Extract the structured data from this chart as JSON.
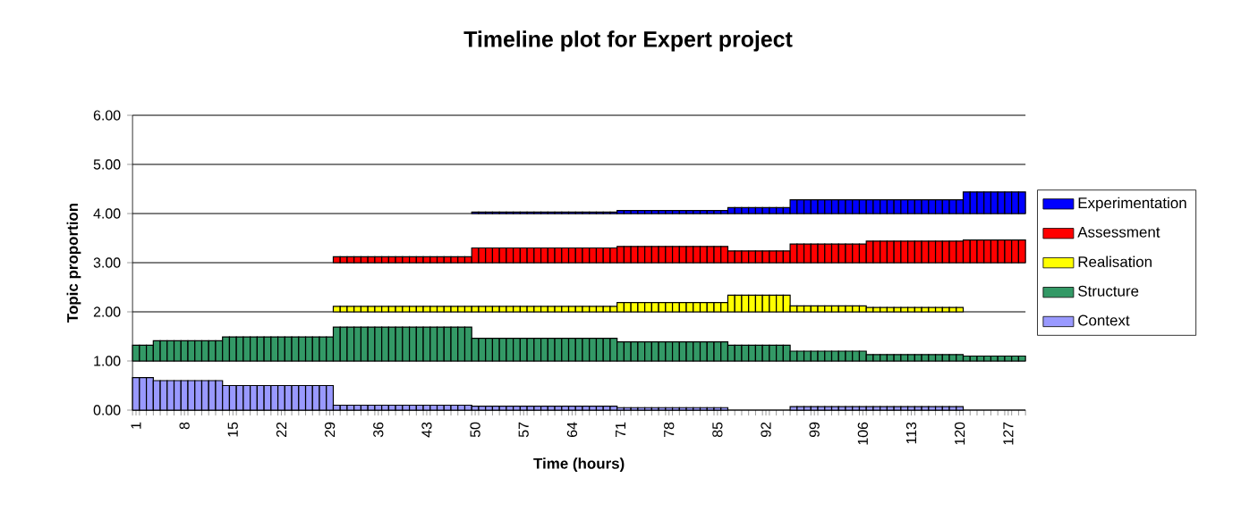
{
  "chart_data": {
    "type": "bar",
    "title": "Timeline plot for Expert project",
    "xlabel": "Time (hours)",
    "ylabel": "Topic proportion",
    "categories": [
      "1",
      null,
      null,
      null,
      null,
      null,
      null,
      "8",
      null,
      null,
      null,
      null,
      null,
      null,
      "15",
      null,
      null,
      null,
      null,
      null,
      null,
      "22",
      null,
      null,
      null,
      null,
      null,
      null,
      "29",
      null,
      null,
      null,
      null,
      null,
      null,
      "36",
      null,
      null,
      null,
      null,
      null,
      null,
      "43",
      null,
      null,
      null,
      null,
      null,
      null,
      "50",
      null,
      null,
      null,
      null,
      null,
      null,
      "57",
      null,
      null,
      null,
      null,
      null,
      null,
      "64",
      null,
      null,
      null,
      null,
      null,
      null,
      "71",
      null,
      null,
      null,
      null,
      null,
      null,
      "78",
      null,
      null,
      null,
      null,
      null,
      null,
      "85",
      null,
      null,
      null,
      null,
      null,
      null,
      "92",
      null,
      null,
      null,
      null,
      null,
      null,
      "99",
      null,
      null,
      null,
      null,
      null,
      null,
      "106",
      null,
      null,
      null,
      null,
      null,
      null,
      "113",
      null,
      null,
      null,
      null,
      null,
      null,
      "120",
      null,
      null,
      null,
      null,
      null,
      null,
      "127",
      null,
      null
    ],
    "series": [
      {
        "name": "Context",
        "color": "#9999ff",
        "values": [
          0.66,
          0.66,
          0.66,
          0.6,
          0.6,
          0.6,
          0.6,
          0.6,
          0.6,
          0.6,
          0.6,
          0.6,
          0.6,
          0.5,
          0.5,
          0.5,
          0.5,
          0.5,
          0.5,
          0.5,
          0.5,
          0.5,
          0.5,
          0.5,
          0.5,
          0.5,
          0.5,
          0.5,
          0.5,
          0.1,
          0.1,
          0.1,
          0.1,
          0.1,
          0.1,
          0.1,
          0.1,
          0.1,
          0.1,
          0.1,
          0.1,
          0.1,
          0.1,
          0.1,
          0.1,
          0.1,
          0.1,
          0.1,
          0.1,
          0.08,
          0.08,
          0.08,
          0.08,
          0.08,
          0.08,
          0.08,
          0.08,
          0.08,
          0.08,
          0.08,
          0.08,
          0.08,
          0.08,
          0.08,
          0.08,
          0.08,
          0.08,
          0.08,
          0.08,
          0.08,
          0.05,
          0.05,
          0.05,
          0.05,
          0.05,
          0.05,
          0.05,
          0.05,
          0.05,
          0.05,
          0.05,
          0.05,
          0.05,
          0.05,
          0.05,
          0.05,
          null,
          null,
          null,
          null,
          null,
          null,
          null,
          null,
          null,
          0.07,
          0.07,
          0.07,
          0.07,
          0.07,
          0.07,
          0.07,
          0.07,
          0.07,
          0.07,
          0.07,
          0.07,
          0.07,
          0.07,
          0.07,
          0.07,
          0.07,
          0.07,
          0.07,
          0.07,
          0.07,
          0.07,
          0.07,
          0.07,
          0.07,
          null,
          null,
          null,
          null,
          null,
          null,
          null,
          null,
          null
        ],
        "base": [
          0,
          0,
          0,
          0,
          0,
          0,
          0,
          0,
          0,
          0,
          0,
          0,
          0,
          0,
          0,
          0,
          0,
          0,
          0,
          0,
          0,
          0,
          0,
          0,
          0,
          0,
          0,
          0,
          0,
          0,
          0,
          0,
          0,
          0,
          0,
          0,
          0,
          0,
          0,
          0,
          0,
          0,
          0,
          0,
          0,
          0,
          0,
          0,
          0,
          0,
          0,
          0,
          0,
          0,
          0,
          0,
          0,
          0,
          0,
          0,
          0,
          0,
          0,
          0,
          0,
          0,
          0,
          0,
          0,
          0,
          0,
          0,
          0,
          0,
          0,
          0,
          0,
          0,
          0,
          0,
          0,
          0,
          0,
          0,
          0,
          0,
          null,
          null,
          null,
          null,
          null,
          null,
          null,
          null,
          null,
          0,
          0,
          0,
          0,
          0,
          0,
          0,
          0,
          0,
          0,
          0,
          0,
          0,
          0,
          0,
          0,
          0,
          0,
          0,
          0,
          0,
          0,
          0,
          0,
          0,
          null,
          null,
          null,
          null,
          null,
          null,
          null,
          null,
          null
        ]
      },
      {
        "name": "Structure",
        "color": "#339966",
        "values": [
          0.32,
          0.32,
          0.32,
          0.41,
          0.41,
          0.41,
          0.41,
          0.41,
          0.41,
          0.41,
          0.41,
          0.41,
          0.41,
          0.49,
          0.49,
          0.49,
          0.49,
          0.49,
          0.49,
          0.49,
          0.49,
          0.49,
          0.49,
          0.49,
          0.49,
          0.49,
          0.49,
          0.49,
          0.49,
          0.69,
          0.69,
          0.69,
          0.69,
          0.69,
          0.69,
          0.69,
          0.69,
          0.69,
          0.69,
          0.69,
          0.69,
          0.69,
          0.69,
          0.69,
          0.69,
          0.69,
          0.69,
          0.69,
          0.69,
          0.46,
          0.46,
          0.46,
          0.46,
          0.46,
          0.46,
          0.46,
          0.46,
          0.46,
          0.46,
          0.46,
          0.46,
          0.46,
          0.46,
          0.46,
          0.46,
          0.46,
          0.46,
          0.46,
          0.46,
          0.46,
          0.39,
          0.39,
          0.39,
          0.39,
          0.39,
          0.39,
          0.39,
          0.39,
          0.39,
          0.39,
          0.39,
          0.39,
          0.39,
          0.39,
          0.39,
          0.39,
          0.32,
          0.32,
          0.32,
          0.32,
          0.32,
          0.32,
          0.32,
          0.32,
          0.32,
          0.2,
          0.2,
          0.2,
          0.2,
          0.2,
          0.2,
          0.2,
          0.2,
          0.2,
          0.2,
          0.2,
          0.13,
          0.13,
          0.13,
          0.13,
          0.13,
          0.13,
          0.13,
          0.13,
          0.13,
          0.13,
          0.13,
          0.13,
          0.13,
          0.13,
          0.1,
          0.1,
          0.1,
          0.1,
          0.1,
          0.1,
          0.1,
          0.1,
          0.1
        ],
        "base": [
          1,
          1,
          1,
          1,
          1,
          1,
          1,
          1,
          1,
          1,
          1,
          1,
          1,
          1,
          1,
          1,
          1,
          1,
          1,
          1,
          1,
          1,
          1,
          1,
          1,
          1,
          1,
          1,
          1,
          1,
          1,
          1,
          1,
          1,
          1,
          1,
          1,
          1,
          1,
          1,
          1,
          1,
          1,
          1,
          1,
          1,
          1,
          1,
          1,
          1,
          1,
          1,
          1,
          1,
          1,
          1,
          1,
          1,
          1,
          1,
          1,
          1,
          1,
          1,
          1,
          1,
          1,
          1,
          1,
          1,
          1,
          1,
          1,
          1,
          1,
          1,
          1,
          1,
          1,
          1,
          1,
          1,
          1,
          1,
          1,
          1,
          1,
          1,
          1,
          1,
          1,
          1,
          1,
          1,
          1,
          1,
          1,
          1,
          1,
          1,
          1,
          1,
          1,
          1,
          1,
          1,
          1,
          1,
          1,
          1,
          1,
          1,
          1,
          1,
          1,
          1,
          1,
          1,
          1,
          1,
          1,
          1,
          1,
          1,
          1,
          1,
          1,
          1,
          1
        ]
      },
      {
        "name": "Realisation",
        "color": "#ffff00",
        "values": [
          null,
          null,
          null,
          null,
          null,
          null,
          null,
          null,
          null,
          null,
          null,
          null,
          null,
          null,
          null,
          null,
          null,
          null,
          null,
          null,
          null,
          null,
          null,
          null,
          null,
          null,
          null,
          null,
          null,
          0.11,
          0.11,
          0.11,
          0.11,
          0.11,
          0.11,
          0.11,
          0.11,
          0.11,
          0.11,
          0.11,
          0.11,
          0.11,
          0.11,
          0.11,
          0.11,
          0.11,
          0.11,
          0.11,
          0.11,
          0.11,
          0.11,
          0.11,
          0.11,
          0.11,
          0.11,
          0.11,
          0.11,
          0.11,
          0.11,
          0.11,
          0.11,
          0.11,
          0.11,
          0.11,
          0.11,
          0.11,
          0.11,
          0.11,
          0.11,
          0.11,
          0.19,
          0.19,
          0.19,
          0.19,
          0.19,
          0.19,
          0.19,
          0.19,
          0.19,
          0.19,
          0.19,
          0.19,
          0.19,
          0.19,
          0.19,
          0.19,
          0.34,
          0.34,
          0.34,
          0.34,
          0.34,
          0.34,
          0.34,
          0.34,
          0.34,
          0.12,
          0.12,
          0.12,
          0.12,
          0.12,
          0.12,
          0.12,
          0.12,
          0.12,
          0.12,
          0.12,
          0.09,
          0.09,
          0.09,
          0.09,
          0.09,
          0.09,
          0.09,
          0.09,
          0.09,
          0.09,
          0.09,
          0.09,
          0.09,
          0.09,
          null,
          null,
          null,
          null,
          null,
          null,
          null,
          null,
          null
        ],
        "base": [
          null,
          null,
          null,
          null,
          null,
          null,
          null,
          null,
          null,
          null,
          null,
          null,
          null,
          null,
          null,
          null,
          null,
          null,
          null,
          null,
          null,
          null,
          null,
          null,
          null,
          null,
          null,
          null,
          null,
          2,
          2,
          2,
          2,
          2,
          2,
          2,
          2,
          2,
          2,
          2,
          2,
          2,
          2,
          2,
          2,
          2,
          2,
          2,
          2,
          2,
          2,
          2,
          2,
          2,
          2,
          2,
          2,
          2,
          2,
          2,
          2,
          2,
          2,
          2,
          2,
          2,
          2,
          2,
          2,
          2,
          2,
          2,
          2,
          2,
          2,
          2,
          2,
          2,
          2,
          2,
          2,
          2,
          2,
          2,
          2,
          2,
          2,
          2,
          2,
          2,
          2,
          2,
          2,
          2,
          2,
          2,
          2,
          2,
          2,
          2,
          2,
          2,
          2,
          2,
          2,
          2,
          2,
          2,
          2,
          2,
          2,
          2,
          2,
          2,
          2,
          2,
          2,
          2,
          2,
          2,
          null,
          null,
          null,
          null,
          null,
          null,
          null,
          null,
          null
        ]
      },
      {
        "name": "Assessment",
        "color": "#ff0000",
        "values": [
          null,
          null,
          null,
          null,
          null,
          null,
          null,
          null,
          null,
          null,
          null,
          null,
          null,
          null,
          null,
          null,
          null,
          null,
          null,
          null,
          null,
          null,
          null,
          null,
          null,
          null,
          null,
          null,
          null,
          0.12,
          0.12,
          0.12,
          0.12,
          0.12,
          0.12,
          0.12,
          0.12,
          0.12,
          0.12,
          0.12,
          0.12,
          0.12,
          0.12,
          0.12,
          0.12,
          0.12,
          0.12,
          0.12,
          0.12,
          0.3,
          0.3,
          0.3,
          0.3,
          0.3,
          0.3,
          0.3,
          0.3,
          0.3,
          0.3,
          0.3,
          0.3,
          0.3,
          0.3,
          0.3,
          0.3,
          0.3,
          0.3,
          0.3,
          0.3,
          0.3,
          0.33,
          0.33,
          0.33,
          0.33,
          0.33,
          0.33,
          0.33,
          0.33,
          0.33,
          0.33,
          0.33,
          0.33,
          0.33,
          0.33,
          0.33,
          0.33,
          0.24,
          0.24,
          0.24,
          0.24,
          0.24,
          0.24,
          0.24,
          0.24,
          0.24,
          0.38,
          0.38,
          0.38,
          0.38,
          0.38,
          0.38,
          0.38,
          0.38,
          0.38,
          0.38,
          0.38,
          0.44,
          0.44,
          0.44,
          0.44,
          0.44,
          0.44,
          0.44,
          0.44,
          0.44,
          0.44,
          0.44,
          0.44,
          0.44,
          0.44,
          0.46,
          0.46,
          0.46,
          0.46,
          0.46,
          0.46,
          0.46,
          0.46,
          0.46
        ],
        "base": [
          null,
          null,
          null,
          null,
          null,
          null,
          null,
          null,
          null,
          null,
          null,
          null,
          null,
          null,
          null,
          null,
          null,
          null,
          null,
          null,
          null,
          null,
          null,
          null,
          null,
          null,
          null,
          null,
          null,
          3,
          3,
          3,
          3,
          3,
          3,
          3,
          3,
          3,
          3,
          3,
          3,
          3,
          3,
          3,
          3,
          3,
          3,
          3,
          3,
          3,
          3,
          3,
          3,
          3,
          3,
          3,
          3,
          3,
          3,
          3,
          3,
          3,
          3,
          3,
          3,
          3,
          3,
          3,
          3,
          3,
          3,
          3,
          3,
          3,
          3,
          3,
          3,
          3,
          3,
          3,
          3,
          3,
          3,
          3,
          3,
          3,
          3,
          3,
          3,
          3,
          3,
          3,
          3,
          3,
          3,
          3,
          3,
          3,
          3,
          3,
          3,
          3,
          3,
          3,
          3,
          3,
          3,
          3,
          3,
          3,
          3,
          3,
          3,
          3,
          3,
          3,
          3,
          3,
          3,
          3,
          3,
          3,
          3,
          3,
          3,
          3,
          3,
          3,
          3
        ]
      },
      {
        "name": "Experimentation",
        "color": "#0000ff",
        "values": [
          null,
          null,
          null,
          null,
          null,
          null,
          null,
          null,
          null,
          null,
          null,
          null,
          null,
          null,
          null,
          null,
          null,
          null,
          null,
          null,
          null,
          null,
          null,
          null,
          null,
          null,
          null,
          null,
          null,
          null,
          null,
          null,
          null,
          null,
          null,
          null,
          null,
          null,
          null,
          null,
          null,
          null,
          null,
          null,
          null,
          null,
          null,
          null,
          null,
          0.03,
          0.03,
          0.03,
          0.03,
          0.03,
          0.03,
          0.03,
          0.03,
          0.03,
          0.03,
          0.03,
          0.03,
          0.03,
          0.03,
          0.03,
          0.03,
          0.03,
          0.03,
          0.03,
          0.03,
          0.03,
          0.06,
          0.06,
          0.06,
          0.06,
          0.06,
          0.06,
          0.06,
          0.06,
          0.06,
          0.06,
          0.06,
          0.06,
          0.06,
          0.06,
          0.06,
          0.06,
          0.12,
          0.12,
          0.12,
          0.12,
          0.12,
          0.12,
          0.12,
          0.12,
          0.12,
          0.28,
          0.28,
          0.28,
          0.28,
          0.28,
          0.28,
          0.28,
          0.28,
          0.28,
          0.28,
          0.28,
          0.28,
          0.28,
          0.28,
          0.28,
          0.28,
          0.28,
          0.28,
          0.28,
          0.28,
          0.28,
          0.28,
          0.28,
          0.28,
          0.28,
          0.44,
          0.44,
          0.44,
          0.44,
          0.44,
          0.44,
          0.44,
          0.44,
          0.44
        ],
        "base": [
          null,
          null,
          null,
          null,
          null,
          null,
          null,
          null,
          null,
          null,
          null,
          null,
          null,
          null,
          null,
          null,
          null,
          null,
          null,
          null,
          null,
          null,
          null,
          null,
          null,
          null,
          null,
          null,
          null,
          null,
          null,
          null,
          null,
          null,
          null,
          null,
          null,
          null,
          null,
          null,
          null,
          null,
          null,
          null,
          null,
          null,
          null,
          null,
          null,
          4,
          4,
          4,
          4,
          4,
          4,
          4,
          4,
          4,
          4,
          4,
          4,
          4,
          4,
          4,
          4,
          4,
          4,
          4,
          4,
          4,
          4,
          4,
          4,
          4,
          4,
          4,
          4,
          4,
          4,
          4,
          4,
          4,
          4,
          4,
          4,
          4,
          4,
          4,
          4,
          4,
          4,
          4,
          4,
          4,
          4,
          4,
          4,
          4,
          4,
          4,
          4,
          4,
          4,
          4,
          4,
          4,
          4,
          4,
          4,
          4,
          4,
          4,
          4,
          4,
          4,
          4,
          4,
          4,
          4,
          4,
          4,
          4,
          4,
          4,
          4,
          4,
          4,
          4,
          4
        ]
      }
    ],
    "ylim": [
      0,
      6
    ],
    "yticks": [
      {
        "value": 0,
        "label": "0.00"
      },
      {
        "value": 1,
        "label": "1.00"
      },
      {
        "value": 2,
        "label": "2.00"
      },
      {
        "value": 3,
        "label": "3.00"
      },
      {
        "value": 4,
        "label": "4.00"
      },
      {
        "value": 5,
        "label": "5.00"
      },
      {
        "value": 6,
        "label": "6.00"
      }
    ],
    "grid": "y",
    "legend": "right"
  }
}
